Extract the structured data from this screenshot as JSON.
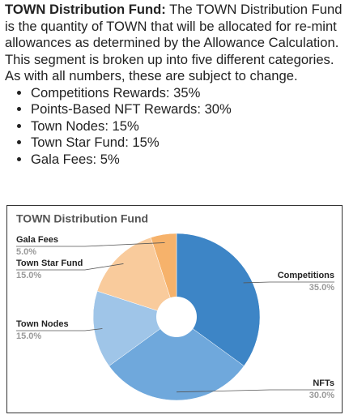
{
  "paragraph": {
    "heading": "TOWN Distribution Fund:",
    "text": "The TOWN Distribution Fund is the quantity of TOWN that will be allocated for re-mint allowances as determined by the Allowance Calculation. This segment is broken up into five different categories. As with all numbers, these are subject to change."
  },
  "bullets": [
    "Competitions Rewards: 35%",
    "Points-Based NFT Rewards: 30%",
    "Town Nodes: 15%",
    "Town Star Fund: 15%",
    "Gala Fees: 5%"
  ],
  "chart_data": {
    "type": "pie",
    "title": "TOWN Distribution Fund",
    "categories": [
      "Competitions",
      "NFTs",
      "Town Nodes",
      "Town Star Fund",
      "Gala Fees"
    ],
    "values": [
      35,
      30,
      15,
      15,
      5
    ],
    "value_labels": [
      "35.0%",
      "30.0%",
      "15.0%",
      "15.0%",
      "5.0%"
    ],
    "colors": [
      "#3d85c6",
      "#6fa8dc",
      "#9fc5e8",
      "#f9cb9c",
      "#f6b26b"
    ],
    "donut": true
  }
}
